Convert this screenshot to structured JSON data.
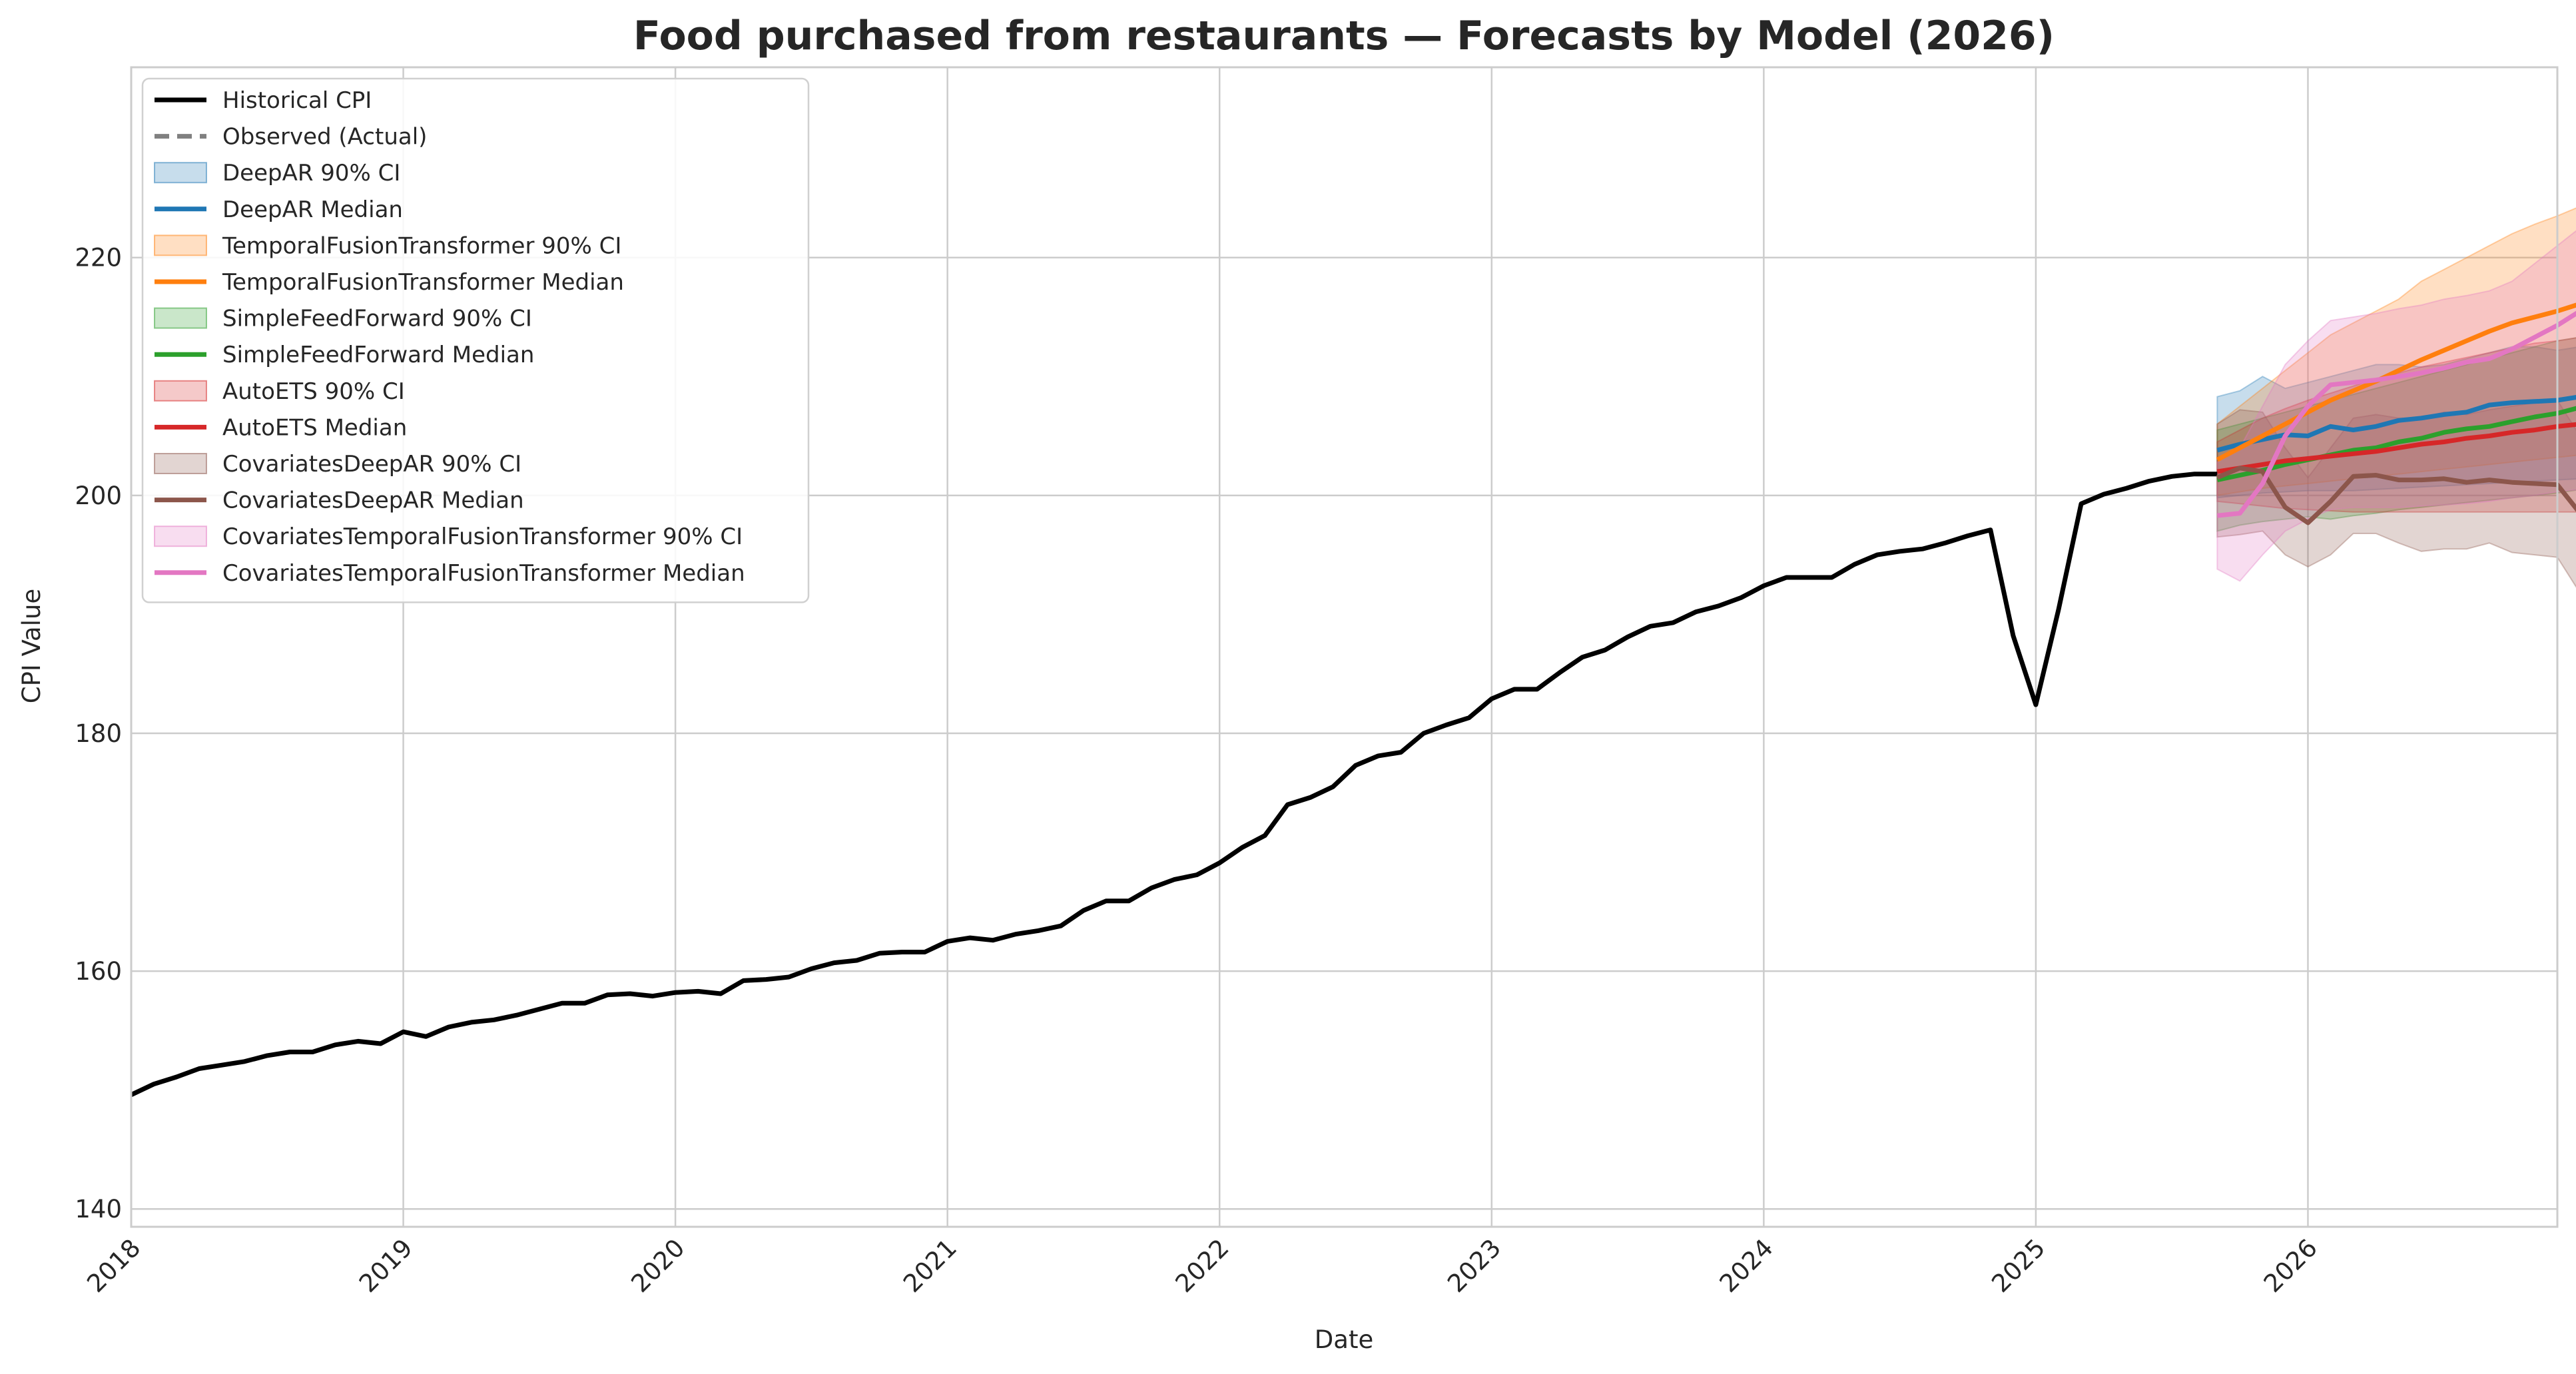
{
  "chart_data": {
    "type": "line",
    "title": "Food purchased from restaurants — Forecasts by Model (2026)",
    "xlabel": "Date",
    "ylabel": "CPI Value",
    "xlim": [
      "2018-01",
      "2026-12"
    ],
    "ylim": [
      138.5,
      236
    ],
    "x_ticks": [
      "2018",
      "2019",
      "2020",
      "2021",
      "2022",
      "2023",
      "2024",
      "2025",
      "2026"
    ],
    "y_ticks": [
      140,
      160,
      180,
      200,
      220
    ],
    "grid": true,
    "legend_position": "top-left",
    "historical": {
      "name": "Historical CPI",
      "color": "#000000",
      "start": "2018-01",
      "values": [
        149.6,
        150.5,
        151.1,
        151.8,
        152.1,
        152.4,
        152.9,
        153.2,
        153.2,
        153.8,
        154.1,
        153.9,
        154.9,
        154.5,
        155.3,
        155.7,
        155.9,
        156.3,
        156.8,
        157.3,
        157.3,
        158.0,
        158.1,
        157.9,
        158.2,
        158.3,
        158.1,
        159.2,
        159.3,
        159.5,
        160.2,
        160.7,
        160.9,
        161.5,
        161.6,
        161.6,
        162.5,
        162.8,
        162.6,
        163.1,
        163.4,
        163.8,
        165.1,
        165.9,
        165.9,
        167.0,
        167.7,
        168.1,
        169.1,
        170.4,
        171.4,
        174.0,
        174.6,
        175.5,
        177.3,
        178.1,
        178.4,
        180.0,
        180.7,
        181.3,
        182.9,
        183.7,
        183.7,
        185.1,
        186.4,
        187.0,
        188.1,
        189.0,
        189.3,
        190.2,
        190.7,
        191.4,
        192.4,
        193.1,
        193.1,
        193.1,
        194.2,
        195.0,
        195.3,
        195.5,
        196.0,
        196.6,
        197.1,
        188.2,
        182.4,
        190.4,
        199.3,
        200.1,
        200.6,
        201.2,
        201.6,
        201.8,
        201.8
      ]
    },
    "observed": {
      "name": "Observed (Actual)",
      "color": "#808080",
      "values": []
    },
    "forecast_start": "2025-09",
    "models": [
      {
        "median_name": "DeepAR Median",
        "ci_name": "DeepAR 90% CI",
        "color": "#1f77b4",
        "median": [
          203.8,
          204.3,
          204.7,
          205.1,
          205.0,
          205.8,
          205.5,
          205.8,
          206.3,
          206.5,
          206.8,
          207.0,
          207.6,
          207.8,
          207.9,
          208.0,
          208.3
        ],
        "lower": [
          199.8,
          200.0,
          200.2,
          200.3,
          200.4,
          200.4,
          200.4,
          200.5,
          200.6,
          200.7,
          200.8,
          200.9,
          201.0,
          201.1,
          201.2,
          201.3,
          201.4
        ],
        "upper": [
          208.3,
          208.8,
          210.0,
          209.0,
          209.5,
          210.0,
          210.5,
          211.0,
          211.0,
          210.8,
          211.0,
          211.5,
          212.0,
          212.5,
          212.5,
          212.2,
          212.5
        ]
      },
      {
        "median_name": "TemporalFusionTransformer Median",
        "ci_name": "TemporalFusionTransformer 90% CI",
        "color": "#ff7f0e",
        "median": [
          203.0,
          204.0,
          205.0,
          206.0,
          207.0,
          208.0,
          208.8,
          209.6,
          210.5,
          211.4,
          212.2,
          213.0,
          213.8,
          214.5,
          215.0,
          215.5,
          216.1
        ],
        "lower": [
          200.0,
          200.3,
          200.6,
          200.8,
          201.0,
          201.2,
          201.4,
          201.6,
          201.8,
          202.0,
          202.2,
          202.4,
          202.6,
          202.8,
          203.0,
          203.2,
          203.4
        ],
        "upper": [
          206.0,
          207.5,
          209.0,
          210.5,
          212.0,
          213.5,
          214.5,
          215.5,
          216.5,
          218.0,
          219.0,
          220.0,
          221.0,
          222.0,
          222.8,
          223.5,
          224.3
        ]
      },
      {
        "median_name": "SimpleFeedForward Median",
        "ci_name": "SimpleFeedForward 90% CI",
        "color": "#2ca02c",
        "median": [
          201.3,
          201.7,
          202.1,
          202.6,
          203.0,
          203.4,
          203.8,
          204.0,
          204.5,
          204.8,
          205.3,
          205.6,
          205.8,
          206.2,
          206.6,
          206.9,
          207.4
        ],
        "lower": [
          197.0,
          197.5,
          197.8,
          198.0,
          198.2,
          198.0,
          198.3,
          198.5,
          198.8,
          199.0,
          199.2,
          199.4,
          199.6,
          199.8,
          200.0,
          200.2,
          200.5
        ],
        "upper": [
          205.5,
          206.0,
          206.5,
          207.0,
          207.5,
          208.0,
          208.5,
          209.0,
          209.5,
          210.0,
          210.5,
          211.0,
          211.5,
          212.0,
          212.5,
          213.0,
          213.3
        ]
      },
      {
        "median_name": "AutoETS Median",
        "ci_name": "AutoETS 90% CI",
        "color": "#d62728",
        "median": [
          202.0,
          202.3,
          202.6,
          202.9,
          203.1,
          203.3,
          203.5,
          203.7,
          204.0,
          204.3,
          204.5,
          204.8,
          205.0,
          205.3,
          205.5,
          205.8,
          206.0
        ],
        "lower": [
          199.5,
          199.3,
          199.1,
          198.9,
          198.8,
          198.7,
          198.6,
          198.6,
          198.6,
          198.6,
          198.6,
          198.6,
          198.6,
          198.6,
          198.6,
          198.6,
          198.6
        ],
        "upper": [
          204.5,
          205.5,
          206.5,
          207.3,
          208.0,
          208.6,
          209.2,
          209.8,
          210.3,
          210.8,
          211.2,
          211.6,
          212.0,
          212.4,
          212.8,
          213.0,
          213.3
        ]
      },
      {
        "median_name": "CovariatesDeepAR Median",
        "ci_name": "CovariatesDeepAR 90% CI",
        "color": "#8c564b",
        "median": [
          201.5,
          202.3,
          202.0,
          199.0,
          197.7,
          199.5,
          201.6,
          201.7,
          201.3,
          201.3,
          201.4,
          201.1,
          201.3,
          201.1,
          201.0,
          200.9,
          198.5
        ],
        "lower": [
          196.5,
          196.7,
          197.0,
          195.0,
          194.0,
          195.0,
          196.8,
          196.8,
          196.0,
          195.3,
          195.5,
          195.5,
          196.0,
          195.2,
          195.0,
          194.8,
          191.8
        ],
        "upper": [
          206.0,
          207.2,
          207.0,
          204.0,
          201.5,
          204.0,
          206.5,
          206.8,
          206.5,
          206.5,
          207.0,
          206.8,
          207.2,
          207.5,
          207.8,
          208.0,
          205.0
        ]
      },
      {
        "median_name": "CovariatesTemporalFusionTransformer Median",
        "ci_name": "CovariatesTemporalFusionTransformer 90% CI",
        "color": "#e377c2",
        "median": [
          198.3,
          198.5,
          201.0,
          205.0,
          207.5,
          209.3,
          209.5,
          209.7,
          210.0,
          210.3,
          210.7,
          211.2,
          211.5,
          212.3,
          213.3,
          214.3,
          215.5
        ],
        "lower": [
          193.8,
          192.8,
          195.0,
          197.0,
          198.0,
          198.8,
          199.0,
          199.0,
          199.0,
          199.1,
          199.2,
          199.3,
          199.5,
          199.8,
          200.0,
          200.3,
          200.5
        ],
        "upper": [
          202.8,
          204.0,
          207.5,
          211.0,
          213.0,
          214.7,
          215.0,
          215.3,
          215.7,
          216.0,
          216.5,
          216.8,
          217.2,
          218.0,
          219.5,
          221.0,
          222.5
        ]
      }
    ]
  }
}
